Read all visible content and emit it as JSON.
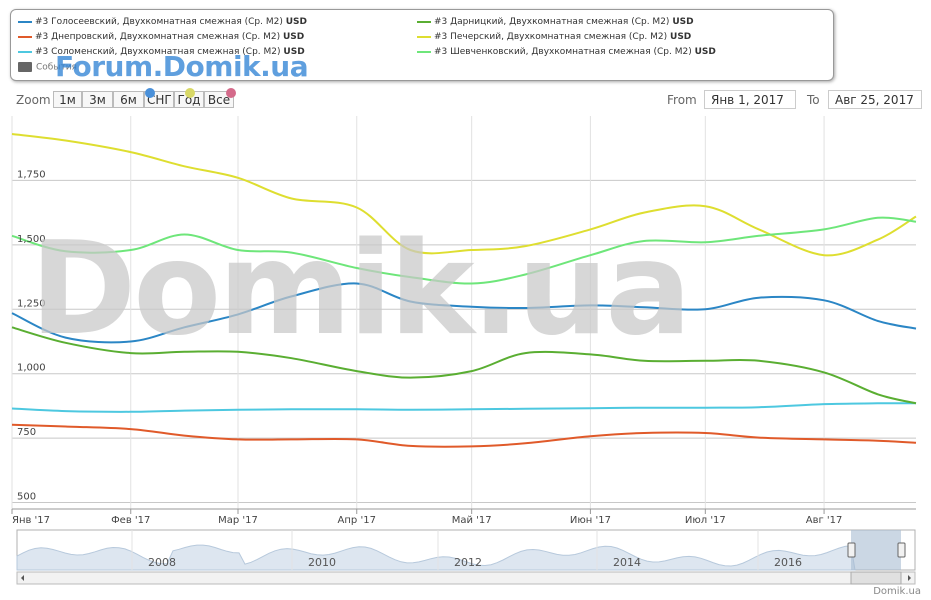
{
  "legend": {
    "items": [
      {
        "label": "#3 Голосеевский, Двухкомнатная смежная (Ср. М2)",
        "unit": "USD",
        "color": "#2b86c5"
      },
      {
        "label": "#3 Днепровский, Двухкомнатная смежная (Ср. М2)",
        "unit": "USD",
        "color": "#e05a2a"
      },
      {
        "label": "#3 Соломенский, Двухкомнатная смежная (Ср. М2)",
        "unit": "USD",
        "color": "#4dc8e0"
      },
      {
        "label": "#3 Дарницкий, Двухкомнатная смежная (Ср. М2)",
        "unit": "USD",
        "color": "#5aae32"
      },
      {
        "label": "#3 Печерский, Двухкомнатная смежная (Ср. М2)",
        "unit": "USD",
        "color": "#dede30"
      },
      {
        "label": "#3 Шевченковский, Двухкомнатная смежная (Ср. М2)",
        "unit": "USD",
        "color": "#6ee67a"
      }
    ],
    "events_label": "События"
  },
  "watermarks": {
    "forum": "Forum.Domik.ua",
    "main": "Domik.ua"
  },
  "zoom": {
    "label": "Zoom",
    "buttons": [
      "1м",
      "3м",
      "6м",
      "СНГ",
      "Год",
      "Все"
    ],
    "dot_colors": [
      "#4a90d9",
      "#d8d866",
      "#d46a8a"
    ]
  },
  "range": {
    "from_label": "From",
    "from_value": "Янв 1, 2017",
    "to_label": "To",
    "to_value": "Авг 25, 2017"
  },
  "credit": "Domik.ua",
  "navigator": {
    "years": [
      "2008",
      "2010",
      "2012",
      "2014",
      "2016"
    ]
  },
  "chart_data": {
    "type": "line",
    "x": [
      "01-01",
      "01-15",
      "02-01",
      "02-15",
      "03-01",
      "03-15",
      "04-01",
      "04-15",
      "05-01",
      "05-15",
      "06-01",
      "06-15",
      "07-01",
      "07-15",
      "08-01",
      "08-15",
      "08-25"
    ],
    "x_tick_labels": [
      "Янв '17",
      "Фев '17",
      "Мар '17",
      "Апр '17",
      "Май '17",
      "Июн '17",
      "Июл '17",
      "Авг '17"
    ],
    "y_ticks": [
      500,
      750,
      1000,
      1250,
      1500,
      1750
    ],
    "ylim": [
      475,
      2000
    ],
    "grid": true,
    "series": [
      {
        "name": "#3 Голосеевский, Двухкомнатная смежная (Ср. М2)",
        "color": "#2b86c5",
        "values": [
          1235,
          1140,
          1125,
          1180,
          1230,
          1300,
          1350,
          1280,
          1260,
          1255,
          1265,
          1258,
          1250,
          1295,
          1285,
          1205,
          1175
        ]
      },
      {
        "name": "#3 Днепровский, Двухкомнатная смежная (Ср. М2)",
        "color": "#e05a2a",
        "values": [
          802,
          795,
          785,
          760,
          745,
          745,
          745,
          720,
          718,
          730,
          757,
          770,
          770,
          752,
          745,
          740,
          732
        ]
      },
      {
        "name": "#3 Соломенский, Двухкомнатная смежная (Ср. М2)",
        "color": "#4dc8e0",
        "values": [
          865,
          855,
          852,
          857,
          860,
          862,
          862,
          860,
          862,
          864,
          866,
          868,
          868,
          870,
          882,
          885,
          885
        ]
      },
      {
        "name": "#3 Дарницкий, Двухкомнатная смежная (Ср. М2)",
        "color": "#5aae32",
        "values": [
          1180,
          1120,
          1080,
          1085,
          1085,
          1060,
          1010,
          985,
          1010,
          1080,
          1075,
          1050,
          1050,
          1050,
          1005,
          920,
          885
        ]
      },
      {
        "name": "#3 Печерский, Двухкомнатная смежная (Ср. М2)",
        "color": "#dede30",
        "values": [
          1930,
          1905,
          1860,
          1805,
          1760,
          1680,
          1645,
          1480,
          1480,
          1495,
          1560,
          1625,
          1650,
          1560,
          1460,
          1520,
          1610
        ]
      },
      {
        "name": "#3 Шевченковский, Двухкомнатная смежная (Ср. М2)",
        "color": "#6ee67a",
        "values": [
          1535,
          1475,
          1480,
          1540,
          1480,
          1470,
          1410,
          1375,
          1350,
          1385,
          1460,
          1515,
          1510,
          1535,
          1560,
          1605,
          1590
        ]
      }
    ]
  }
}
